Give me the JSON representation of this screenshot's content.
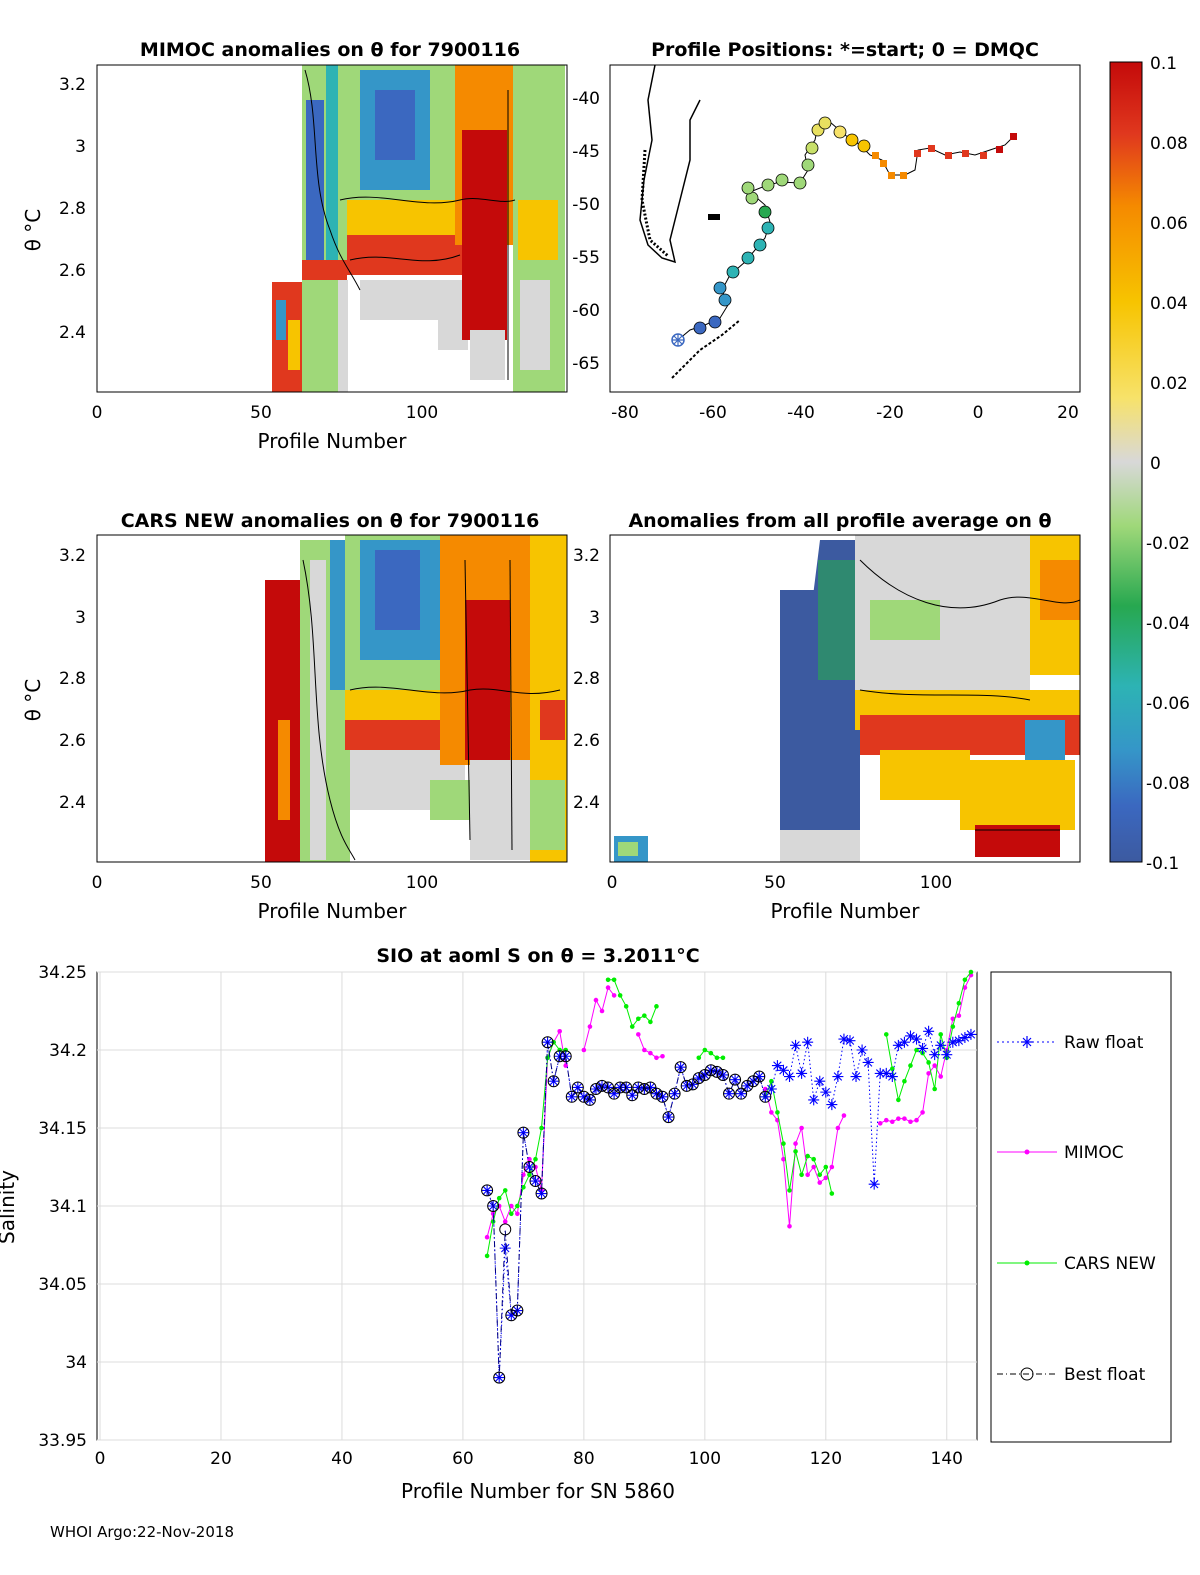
{
  "footer": "WHOI Argo:22-Nov-2018",
  "colors": {
    "raw_float": "#0000ff",
    "mimoc": "#ff00ff",
    "cars_new": "#00ee00",
    "best_float": "#000000",
    "colormap": [
      "#3c5aa0",
      "#3b68c0",
      "#3596c8",
      "#2db3b4",
      "#27a850",
      "#9fd879",
      "#d8d8d8",
      "#f7e26a",
      "#f7c400",
      "#f58a00",
      "#e0381e",
      "#c40a0a"
    ]
  },
  "panels": {
    "mimoc": {
      "title": "MIMOC anomalies on θ  for 7900116",
      "xlabel": "Profile Number",
      "ylabel": "θ °C",
      "xticks": [
        "0",
        "50",
        "100"
      ],
      "yticks": [
        "3.2",
        "3",
        "2.8",
        "2.6",
        "2.4"
      ]
    },
    "positions": {
      "title": "Profile Positions: *=start; 0 = DMQC",
      "xticks": [
        "-80",
        "-60",
        "-40",
        "-20",
        "0",
        "20"
      ],
      "yticks": [
        "-40",
        "-45",
        "-50",
        "-55",
        "-60",
        "-65"
      ]
    },
    "cars": {
      "title": "CARS NEW anomalies on θ for 7900116",
      "xlabel": "Profile Number",
      "ylabel": "θ °C",
      "xticks": [
        "0",
        "50",
        "100"
      ],
      "yticks": [
        "3.2",
        "3",
        "2.8",
        "2.6",
        "2.4"
      ]
    },
    "allavg": {
      "title": "Anomalies from all profile average on θ",
      "xlabel": "Profile Number",
      "xticks": [
        "0",
        "50",
        "100"
      ],
      "yticks": [
        "3.2",
        "3",
        "2.8",
        "2.6",
        "2.4"
      ]
    },
    "colorbar": {
      "ticks": [
        "0.1",
        "0.08",
        "0.06",
        "0.04",
        "0.02",
        "0",
        "-0.02",
        "-0.04",
        "-0.06",
        "-0.08",
        "-0.1"
      ]
    }
  },
  "chart_data": [
    {
      "type": "line",
      "title": "SIO at aoml S on θ = 3.2011°C",
      "xlabel": "Profile Number for SN 5860",
      "ylabel": "Salinity",
      "xlim": [
        -0.5,
        145
      ],
      "ylim": [
        33.95,
        34.25
      ],
      "xticks": [
        "0",
        "20",
        "40",
        "60",
        "80",
        "100",
        "120",
        "140"
      ],
      "yticks": [
        "34.25",
        "34.2",
        "34.15",
        "34.1",
        "34.05",
        "34",
        "33.95"
      ],
      "grid": true,
      "legend_position": "right",
      "series": [
        {
          "name": "Raw float",
          "style": "dotted-asterisk",
          "x": [
            64,
            65,
            66,
            67,
            68,
            69,
            70,
            71,
            72,
            73,
            74,
            75,
            76,
            77,
            78,
            79,
            80,
            81,
            82,
            83,
            84,
            85,
            86,
            87,
            88,
            89,
            90,
            91,
            92,
            93,
            94,
            95,
            96,
            97,
            98,
            99,
            100,
            101,
            102,
            103,
            104,
            105,
            106,
            107,
            108,
            109,
            110,
            111,
            112,
            113,
            114,
            115,
            116,
            117,
            118,
            119,
            120,
            121,
            122,
            123,
            124,
            125,
            126,
            127,
            128,
            129,
            130,
            131,
            132,
            133,
            134,
            135,
            136,
            137,
            138,
            139,
            140,
            141,
            142,
            143,
            144
          ],
          "y": [
            34.11,
            34.1,
            33.99,
            34.073,
            34.03,
            34.033,
            34.147,
            34.125,
            34.116,
            34.108,
            34.205,
            34.18,
            34.196,
            34.196,
            34.17,
            34.176,
            34.17,
            34.168,
            34.175,
            34.177,
            34.176,
            34.172,
            34.176,
            34.176,
            34.171,
            34.176,
            34.175,
            34.176,
            34.172,
            34.17,
            34.157,
            34.172,
            34.189,
            34.177,
            34.178,
            34.182,
            34.184,
            34.187,
            34.186,
            34.184,
            34.172,
            34.181,
            34.172,
            34.177,
            34.18,
            34.183,
            34.17,
            34.175,
            34.19,
            34.187,
            34.183,
            34.203,
            34.185,
            34.205,
            34.168,
            34.18,
            34.173,
            34.165,
            34.183,
            34.207,
            34.206,
            34.183,
            34.2,
            34.192,
            34.114,
            34.185,
            34.185,
            34.183,
            34.203,
            34.205,
            34.209,
            34.207,
            34.201,
            34.212,
            34.197,
            34.203,
            34.197,
            34.205,
            34.206,
            34.208,
            34.21
          ]
        },
        {
          "name": "MIMOC",
          "style": "solid-dot",
          "x": [
            64,
            65,
            66,
            67,
            68,
            69,
            70,
            71,
            72,
            73,
            74,
            75,
            76,
            77,
            null,
            80,
            81,
            82,
            83,
            84,
            85,
            null,
            89,
            90,
            91,
            92,
            93,
            null,
            110,
            111,
            112,
            113,
            114,
            115,
            116,
            117,
            118,
            119,
            120,
            121,
            122,
            123,
            null,
            129,
            130,
            131,
            132,
            133,
            134,
            135,
            136,
            137,
            138,
            139,
            140,
            141,
            142,
            143,
            144
          ],
          "y": [
            34.08,
            34.095,
            34.1,
            34.09,
            34.1,
            34.095,
            34.12,
            34.13,
            34.125,
            34.11,
            34.195,
            34.205,
            34.212,
            34.19,
            null,
            34.2,
            34.215,
            34.232,
            34.225,
            34.24,
            34.235,
            null,
            34.21,
            34.2,
            34.198,
            34.195,
            34.196,
            null,
            34.175,
            34.16,
            34.155,
            34.13,
            34.087,
            34.14,
            34.15,
            34.12,
            34.125,
            34.115,
            34.118,
            34.125,
            34.15,
            34.158,
            null,
            34.153,
            34.155,
            34.154,
            34.156,
            34.156,
            34.154,
            34.155,
            34.16,
            34.185,
            34.19,
            34.183,
            34.2,
            34.22,
            34.222,
            34.24,
            34.248
          ]
        },
        {
          "name": "CARS NEW",
          "style": "solid-dot",
          "x": [
            64,
            65,
            66,
            67,
            68,
            69,
            70,
            71,
            72,
            73,
            74,
            75,
            76,
            77,
            null,
            84,
            85,
            86,
            87,
            88,
            89,
            90,
            91,
            92,
            null,
            99,
            100,
            101,
            102,
            103,
            null,
            110,
            111,
            112,
            113,
            114,
            115,
            116,
            117,
            118,
            119,
            120,
            121,
            null,
            130,
            131,
            132,
            133,
            134,
            135,
            136,
            137,
            138,
            139,
            140,
            141,
            142,
            143,
            144
          ],
          "y": [
            34.068,
            34.09,
            34.105,
            34.11,
            34.095,
            34.1,
            34.112,
            34.12,
            34.13,
            34.15,
            34.195,
            34.205,
            34.2,
            34.2,
            null,
            34.245,
            34.245,
            34.235,
            34.228,
            34.215,
            34.22,
            34.222,
            34.218,
            34.228,
            null,
            34.195,
            34.2,
            34.198,
            34.195,
            34.195,
            null,
            34.17,
            34.18,
            34.16,
            34.14,
            34.11,
            34.135,
            34.12,
            34.132,
            34.13,
            34.12,
            34.125,
            34.108,
            null,
            34.21,
            34.188,
            34.168,
            34.18,
            34.19,
            34.2,
            34.198,
            34.192,
            34.175,
            34.21,
            34.195,
            34.215,
            34.23,
            34.245,
            34.25
          ]
        },
        {
          "name": "Best float",
          "style": "dashdot-circle",
          "x": [
            64,
            65,
            66,
            67,
            68,
            69,
            70,
            71,
            72,
            73,
            74,
            75,
            76,
            77,
            78,
            79,
            80,
            81,
            82,
            83,
            84,
            85,
            86,
            87,
            88,
            89,
            90,
            91,
            92,
            93,
            94,
            95,
            96,
            97,
            98,
            99,
            100,
            101,
            102,
            103,
            104,
            105,
            106,
            107,
            108,
            109,
            110
          ],
          "y": [
            34.11,
            34.1,
            33.99,
            34.085,
            34.03,
            34.033,
            34.147,
            34.125,
            34.116,
            34.108,
            34.205,
            34.18,
            34.196,
            34.196,
            34.17,
            34.176,
            34.17,
            34.168,
            34.175,
            34.177,
            34.176,
            34.172,
            34.176,
            34.176,
            34.171,
            34.176,
            34.175,
            34.176,
            34.172,
            34.17,
            34.157,
            34.172,
            34.189,
            34.177,
            34.178,
            34.182,
            34.184,
            34.187,
            34.186,
            34.184,
            34.172,
            34.181,
            34.172,
            34.177,
            34.18,
            34.183,
            34.17
          ]
        }
      ]
    }
  ]
}
